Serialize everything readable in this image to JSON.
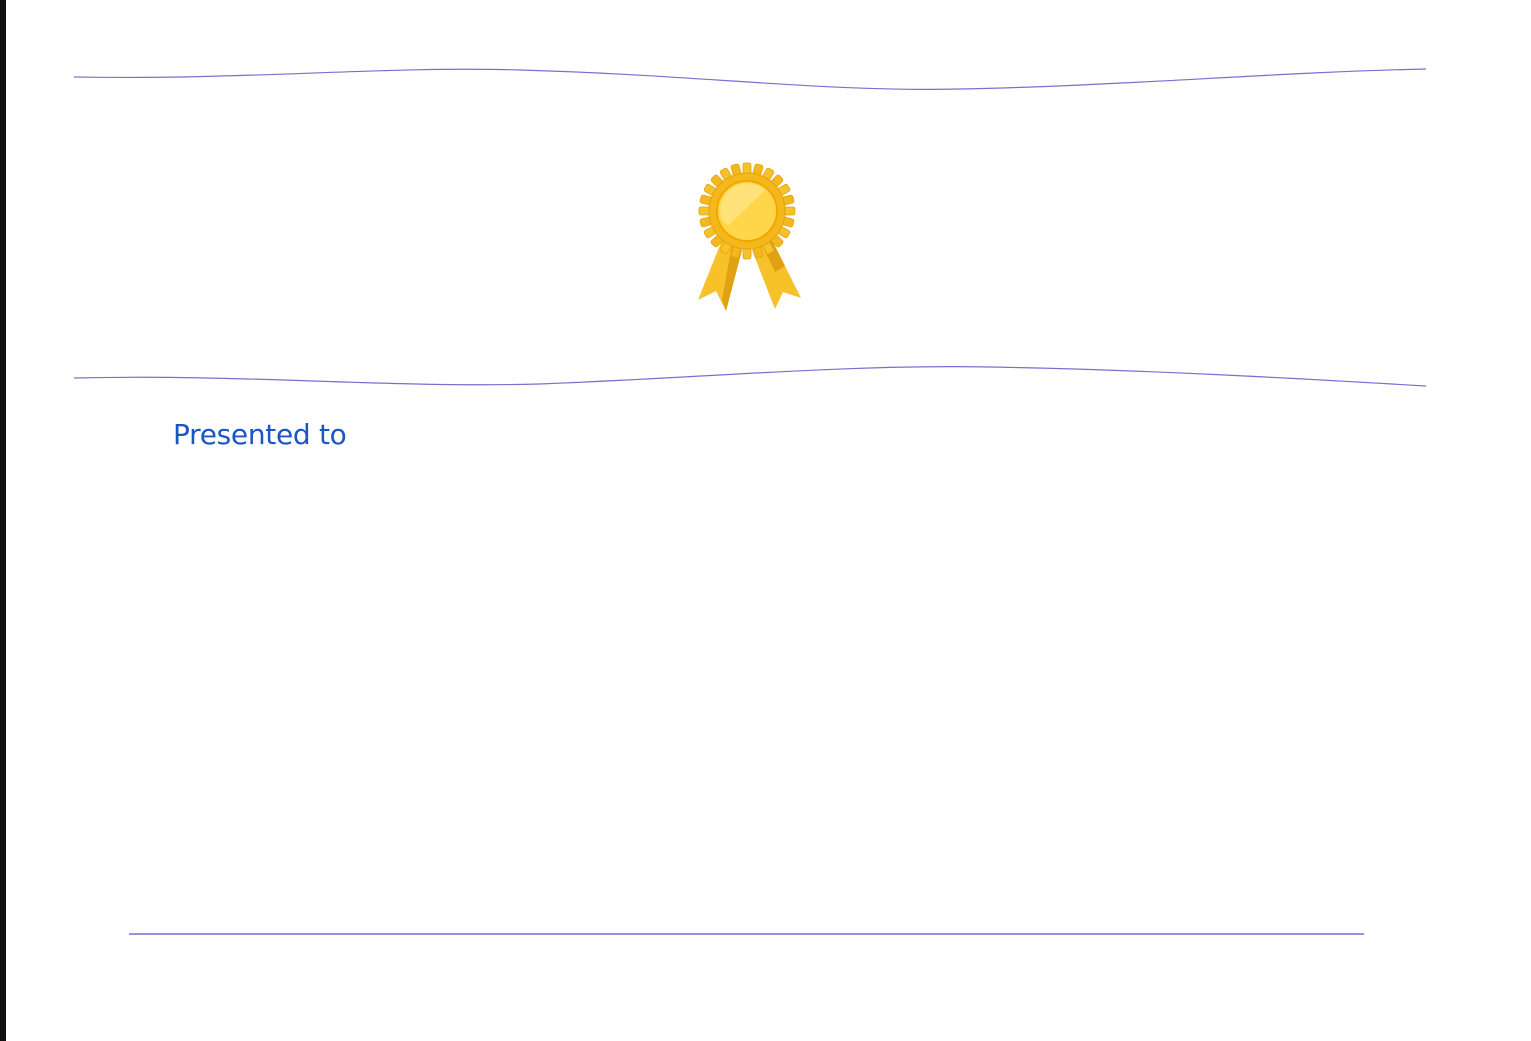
{
  "certificate": {
    "presented_label": "Presented to",
    "badge_icon": "award-ribbon-icon"
  },
  "colors": {
    "background": "#ffffff",
    "accent_text": "#1a56c4",
    "rule_line": "#7a6fd0",
    "gold_outer": "#f5b81c",
    "gold_inner": "#ffd54a",
    "gold_light": "#ffe27a",
    "ribbon": "#f7c12a",
    "ribbon_dark": "#e0a213"
  }
}
